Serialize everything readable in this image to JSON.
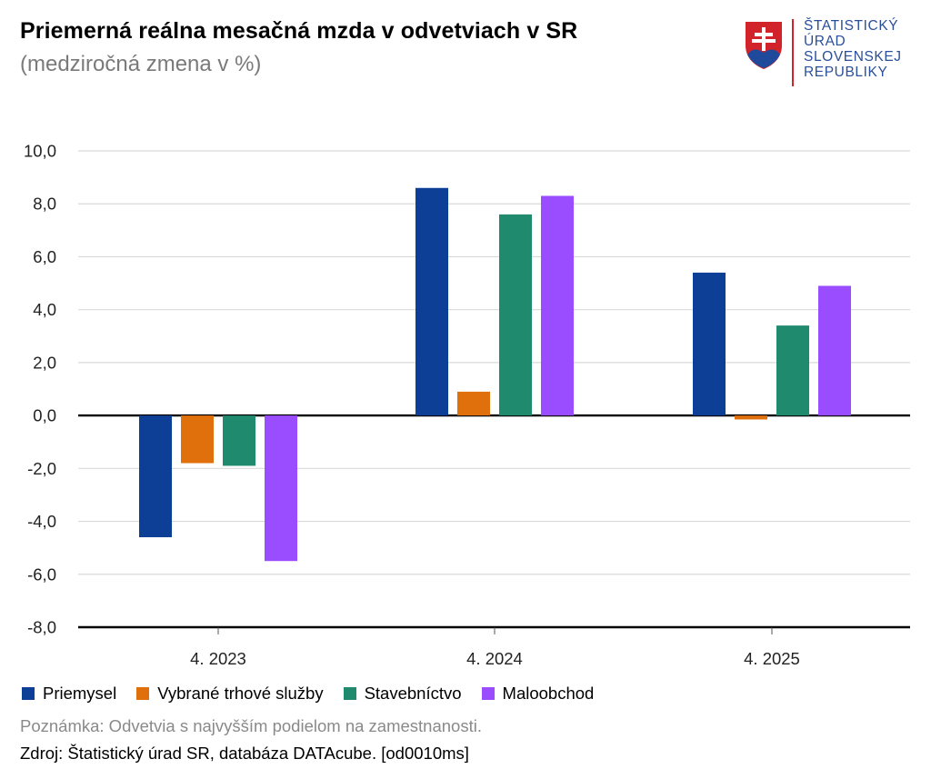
{
  "header": {
    "title": "Priemerná reálna mesačná mzda v odvetviach v SR",
    "subtitle": "(medziročná zmena v %)"
  },
  "logo": {
    "lines": [
      "ŠTATISTICKÝ",
      "ÚRAD",
      "SLOVENSKEJ",
      "REPUBLIKY"
    ],
    "colors": {
      "shield_red": "#d2232a",
      "shield_blue": "#1f4a9c",
      "text": "#2a4f9a"
    }
  },
  "chart_data": {
    "type": "bar",
    "title": "Priemerná reálna mesačná mzda v odvetviach v SR",
    "subtitle": "(medziročná zmena v %)",
    "categories": [
      "4. 2023",
      "4. 2024",
      "4. 2025"
    ],
    "series": [
      {
        "name": "Priemysel",
        "color": "#0d3f96",
        "values": [
          -4.6,
          8.6,
          5.4
        ]
      },
      {
        "name": "Vybrané trhové služby",
        "color": "#e0700c",
        "values": [
          -1.8,
          0.9,
          -0.15
        ]
      },
      {
        "name": "Stavebníctvo",
        "color": "#1f8a6e",
        "values": [
          -1.9,
          7.6,
          3.4
        ]
      },
      {
        "name": "Maloobchod",
        "color": "#9a4dff",
        "values": [
          -5.5,
          8.3,
          4.9
        ]
      }
    ],
    "ylim": [
      -8,
      10
    ],
    "yticks": [
      10,
      8,
      6,
      4,
      2,
      0,
      -2,
      -4,
      -6,
      -8
    ],
    "ytick_labels": [
      "10,0",
      "8,0",
      "6,0",
      "4,0",
      "2,0",
      "0,0",
      "-2,0",
      "-4,0",
      "-6,0",
      "-8,0"
    ],
    "grid": true,
    "legend_position": "bottom-left",
    "xlabel": "",
    "ylabel": ""
  },
  "footer": {
    "note": "Poznámka: Odvetvia s najvyšším podielom na zamestnanosti.",
    "source": "Zdroj: Štatistický úrad SR, databáza DATAcube. [od0010ms]"
  }
}
